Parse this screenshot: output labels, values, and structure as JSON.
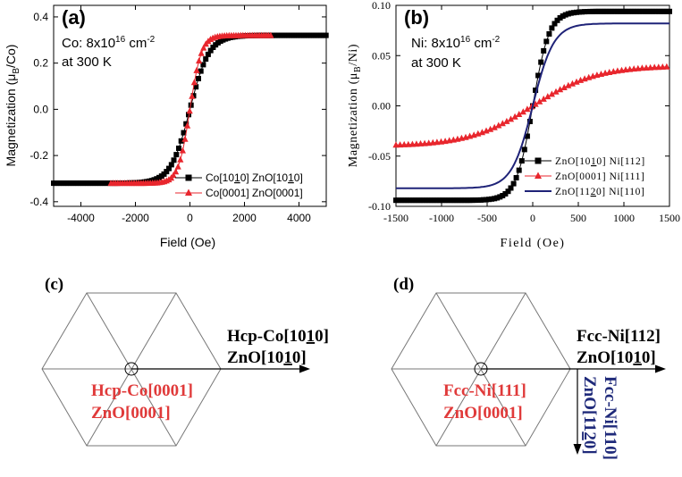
{
  "colors": {
    "black": "#000000",
    "red": "#e8262d",
    "navy": "#1f2378",
    "crystal_red": "#e03a3a",
    "crystal_blue": "#1f2a7a"
  },
  "chart_data": [
    {
      "type": "scatter",
      "panel_label": "(a)",
      "xlabel": "Field (Oe)",
      "ylabel": "Magnetization (μB/Co)",
      "ylabel_text": "Magnetization (μ",
      "ylabel_sub": "B",
      "ylabel_end": "/Co)",
      "xlim": [
        -5000,
        5000
      ],
      "ylim": [
        -0.42,
        0.45
      ],
      "xticks": [
        -4000,
        -2000,
        0,
        2000,
        4000
      ],
      "xtick_labels": [
        "-4000",
        "-2000",
        "0",
        "2000",
        "4000"
      ],
      "yticks": [
        -0.4,
        -0.2,
        0.0,
        0.2,
        0.4
      ],
      "ytick_labels": [
        "-0.4",
        "-0.2",
        "0.0",
        "0.2",
        "0.4"
      ],
      "annotation_line1_pre": "Co: 8x10",
      "annotation_exp1": "16",
      "annotation_mid": " cm",
      "annotation_exp2": "-2",
      "annotation_line2": "at 300 K",
      "series": [
        {
          "name": "Co[10̅1̅0] ZnO[10̅1̅0]",
          "legend": "Co[1010] ZnO[1010]",
          "legend_parts": [
            "Co[10",
            "1",
            "0] ZnO[10",
            "1",
            "0]"
          ],
          "color": "#000000",
          "marker": "square",
          "Ms": 0.32,
          "H0": 700,
          "x_min": -5000,
          "x_max": 5000,
          "step": 90
        },
        {
          "name": "Co[0001] ZnO[0001]",
          "legend": "Co[0001] ZnO[0001]",
          "legend_parts": [
            "Co[0001] ZnO[0001]"
          ],
          "color": "#e8262d",
          "marker": "triangle",
          "Ms": 0.32,
          "H0": 420,
          "x_min": -2900,
          "x_max": 3000,
          "step": 85
        }
      ]
    },
    {
      "type": "scatter",
      "panel_label": "(b)",
      "xlabel": "Field (Oe)",
      "ylabel": "Magnetization (μB/Ni)",
      "ylabel_text": "Magnetization (μ",
      "ylabel_sub": "B",
      "ylabel_end": "/Ni)",
      "xlim": [
        -1500,
        1500
      ],
      "ylim": [
        -0.1,
        0.1
      ],
      "xticks": [
        -1500,
        -1000,
        -500,
        0,
        500,
        1000,
        1500
      ],
      "xtick_labels": [
        "-1500",
        "-1000",
        "-500",
        "0",
        "500",
        "1000",
        "1500"
      ],
      "yticks": [
        -0.1,
        -0.05,
        0.0,
        0.05,
        0.1
      ],
      "ytick_labels": [
        "-0.10",
        "-0.05",
        "0.00",
        "0.05",
        "0.10"
      ],
      "annotation_line1_pre": "Ni: 8x10",
      "annotation_exp1": "16",
      "annotation_mid": " cm",
      "annotation_exp2": "-2",
      "annotation_line2": "at 300 K",
      "series": [
        {
          "name": "ZnO[10̅1̅0] Ni[112]",
          "legend": "ZnO[1010] Ni[112]",
          "legend_parts": [
            "ZnO[10",
            "1",
            "0] Ni[112]"
          ],
          "color": "#000000",
          "marker": "square",
          "Ms": 0.094,
          "H0": 180,
          "x_min": -1500,
          "x_max": 1500,
          "step": 30
        },
        {
          "name": "ZnO[0001] Ni[111]",
          "legend": "ZnO[0001] Ni[111]",
          "legend_parts": [
            "ZnO[0001] Ni[111]"
          ],
          "color": "#e8262d",
          "marker": "triangle",
          "Ms": 0.04,
          "H0": 700,
          "x_min": -1500,
          "x_max": 1500,
          "step": 45
        },
        {
          "name": "ZnO[11̅2̅0] Ni[110]",
          "legend": "ZnO[1120] Ni[110]",
          "legend_parts": [
            "ZnO[11",
            "2",
            "0] Ni[110]"
          ],
          "color": "#1f2378",
          "marker": "line",
          "Ms": 0.082,
          "H0": 230,
          "x_min": -1500,
          "x_max": 1500,
          "step": 20
        }
      ]
    }
  ],
  "diagram_c": {
    "panel_label": "(c)",
    "center_label_1": "Hcp-Co[0001]",
    "center_label_2": "ZnO[0001]",
    "arrow_label_1_parts": [
      "Hcp-Co[10",
      "1",
      "0]"
    ],
    "arrow_label_2_parts": [
      "ZnO[10",
      "1",
      "0]"
    ]
  },
  "diagram_d": {
    "panel_label": "(d)",
    "center_label_1": "Fcc-Ni[111]",
    "center_label_2": "ZnO[0001]",
    "arrow_label_1": "Fcc-Ni[112]",
    "arrow_label_2_parts": [
      "ZnO[10",
      "1",
      "0]"
    ],
    "vertical_label_1": "Fcc-Ni[110]",
    "vertical_label_2_parts": [
      "ZnO[11",
      "2",
      "0]"
    ]
  }
}
